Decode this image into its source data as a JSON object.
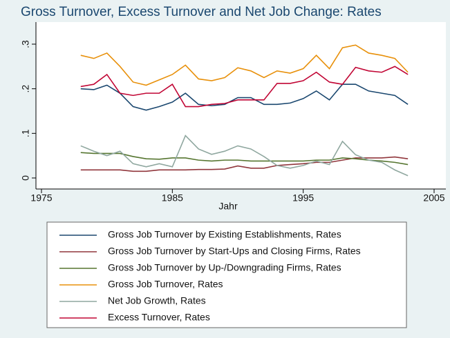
{
  "chart_data": {
    "type": "line",
    "title": "Gross Turnover, Excess Turnover and Net Job Change: Rates",
    "x_label": "Jahr",
    "x": [
      1978,
      1979,
      1980,
      1981,
      1982,
      1983,
      1984,
      1985,
      1986,
      1987,
      1988,
      1989,
      1990,
      1991,
      1992,
      1993,
      1994,
      1995,
      1996,
      1997,
      1998,
      1999,
      2000,
      2001,
      2002,
      2003
    ],
    "xlim": [
      1975,
      2005
    ],
    "xticks": [
      1975,
      1985,
      1995,
      2005
    ],
    "ylim": [
      0,
      0.3
    ],
    "yticks": [
      {
        "value": 0.3,
        "label": ".3"
      },
      {
        "value": 0.2,
        "label": ".2"
      },
      {
        "value": 0.1,
        "label": ".1"
      },
      0
    ],
    "series": [
      {
        "name": "Gross Job Turnover by Existing Establishments, Rates",
        "color": "#1a476f",
        "values": [
          0.2,
          0.198,
          0.208,
          0.19,
          0.16,
          0.152,
          0.16,
          0.17,
          0.19,
          0.165,
          0.162,
          0.165,
          0.18,
          0.18,
          0.165,
          0.165,
          0.168,
          0.178,
          0.195,
          0.175,
          0.21,
          0.21,
          0.195,
          0.19,
          0.185,
          0.165
        ]
      },
      {
        "name": "Gross Job Turnover by Start-Ups and Closing Firms, Rates",
        "color": "#90353b",
        "values": [
          0.018,
          0.018,
          0.018,
          0.018,
          0.015,
          0.015,
          0.018,
          0.018,
          0.018,
          0.019,
          0.019,
          0.02,
          0.027,
          0.022,
          0.022,
          0.028,
          0.03,
          0.032,
          0.035,
          0.035,
          0.04,
          0.045,
          0.045,
          0.045,
          0.047,
          0.043
        ]
      },
      {
        "name": "Gross Job Turnover by Up-/Downgrading Firms, Rates",
        "color": "#55752f",
        "values": [
          0.057,
          0.055,
          0.055,
          0.055,
          0.048,
          0.043,
          0.042,
          0.045,
          0.045,
          0.04,
          0.038,
          0.04,
          0.04,
          0.038,
          0.038,
          0.038,
          0.038,
          0.038,
          0.04,
          0.04,
          0.045,
          0.043,
          0.04,
          0.038,
          0.035,
          0.03
        ]
      },
      {
        "name": "Gross Job Turnover, Rates",
        "color": "#e8900a",
        "values": [
          0.275,
          0.268,
          0.28,
          0.25,
          0.215,
          0.208,
          0.22,
          0.232,
          0.253,
          0.222,
          0.218,
          0.225,
          0.247,
          0.24,
          0.225,
          0.24,
          0.235,
          0.245,
          0.275,
          0.245,
          0.292,
          0.298,
          0.28,
          0.275,
          0.268,
          0.237
        ]
      },
      {
        "name": "Net Job Growth, Rates",
        "color": "#8fa79f",
        "values": [
          0.072,
          0.06,
          0.05,
          0.06,
          0.032,
          0.025,
          0.032,
          0.025,
          0.095,
          0.065,
          0.053,
          0.06,
          0.072,
          0.065,
          0.048,
          0.028,
          0.022,
          0.028,
          0.038,
          0.03,
          0.082,
          0.052,
          0.04,
          0.035,
          0.018,
          0.005
        ]
      },
      {
        "name": "Excess Turnover, Rates",
        "color": "#c10534",
        "values": [
          0.205,
          0.21,
          0.232,
          0.19,
          0.185,
          0.19,
          0.19,
          0.21,
          0.16,
          0.16,
          0.165,
          0.167,
          0.175,
          0.175,
          0.175,
          0.212,
          0.212,
          0.218,
          0.237,
          0.215,
          0.21,
          0.248,
          0.24,
          0.237,
          0.25,
          0.232
        ]
      }
    ]
  }
}
